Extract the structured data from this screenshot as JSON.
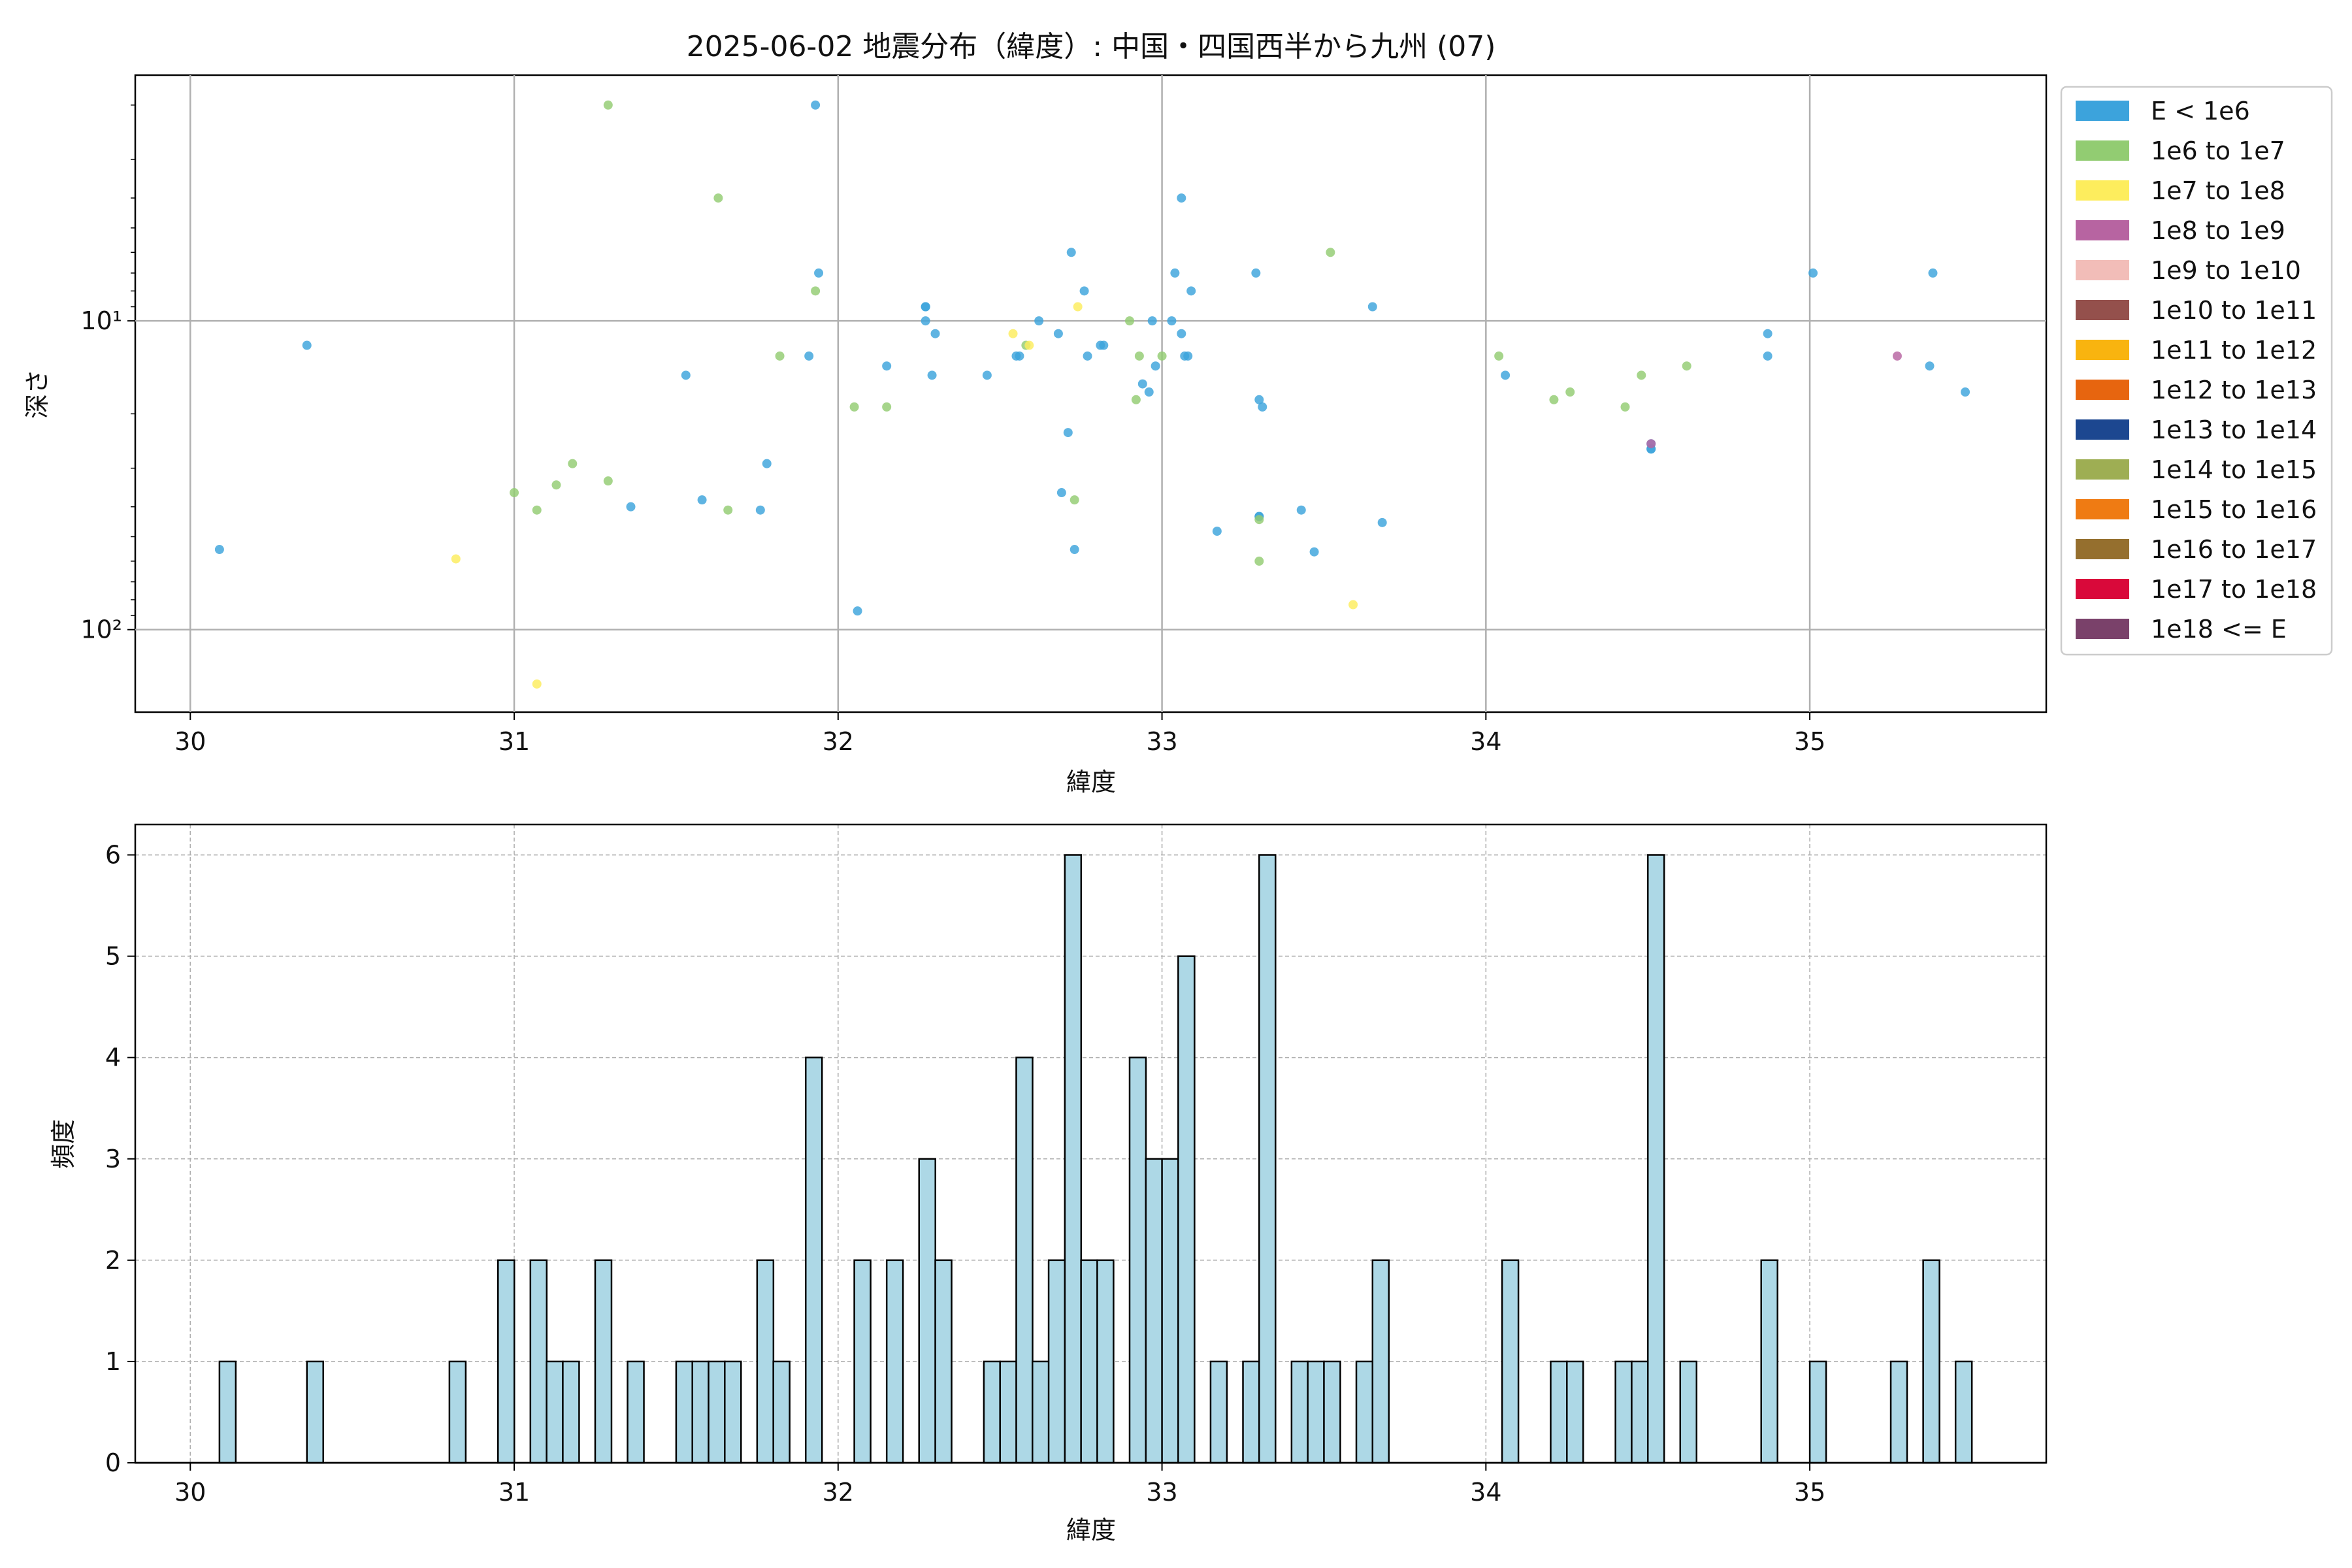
{
  "chart_data": [
    {
      "type": "scatter",
      "title": "2025-06-02 地震分布（緯度）: 中国・四国西半から九州 (07)",
      "xlabel": "緯度",
      "ylabel": "深さ",
      "yscale": "log",
      "y_inverted": true,
      "xlim": [
        29.83,
        35.73
      ],
      "ylim": [
        185,
        1.6
      ],
      "grid": true,
      "x_ticks": [
        30,
        31,
        32,
        33,
        34,
        35
      ],
      "x_tick_labels": [
        "30",
        "31",
        "32",
        "33",
        "34",
        "35"
      ],
      "y_ticks": [
        10,
        100
      ],
      "y_tick_labels": [
        "10¹",
        "10²"
      ],
      "legend_position": "right, outside axes",
      "legend": [
        {
          "label": "E < 1e6",
          "color": "#3ca3dc"
        },
        {
          "label": "1e6 to 1e7",
          "color": "#92cc72"
        },
        {
          "label": "1e7 to 1e8",
          "color": "#fded5d"
        },
        {
          "label": "1e8 to 1e9",
          "color": "#b764a1"
        },
        {
          "label": "1e9 to 1e10",
          "color": "#f2bdb8"
        },
        {
          "label": "1e10 to 1e11",
          "color": "#94504c"
        },
        {
          "label": "1e11 to 1e12",
          "color": "#f9b40f"
        },
        {
          "label": "1e12 to 1e13",
          "color": "#e7650f"
        },
        {
          "label": "1e13 to 1e14",
          "color": "#1c4790"
        },
        {
          "label": "1e14 to 1e15",
          "color": "#9eae53"
        },
        {
          "label": "1e15 to 1e16",
          "color": "#ef7b13"
        },
        {
          "label": "1e16 to 1e17",
          "color": "#956f2e"
        },
        {
          "label": "1e17 to 1e18",
          "color": "#d9093a"
        },
        {
          "label": "1e18 <= E",
          "color": "#7a416a"
        }
      ],
      "series": [
        {
          "energy_class": "E < 1e6",
          "color": "#3ca3dc",
          "points": [
            [
              30.09,
              55.0
            ],
            [
              30.36,
              12.0
            ],
            [
              31.36,
              40.0
            ],
            [
              31.53,
              15.0
            ],
            [
              31.58,
              38.0
            ],
            [
              31.76,
              41.0
            ],
            [
              31.78,
              29.0
            ],
            [
              31.91,
              13.0
            ],
            [
              31.93,
              2.0
            ],
            [
              31.94,
              7.0
            ],
            [
              32.06,
              87.0
            ],
            [
              32.15,
              14.0
            ],
            [
              32.27,
              10.0
            ],
            [
              32.27,
              9.0
            ],
            [
              32.27,
              9.0
            ],
            [
              32.29,
              15.0
            ],
            [
              32.3,
              11.0
            ],
            [
              32.46,
              15.0
            ],
            [
              32.55,
              13.0
            ],
            [
              32.56,
              13.0
            ],
            [
              32.62,
              10.0
            ],
            [
              32.68,
              11.0
            ],
            [
              32.69,
              36.0
            ],
            [
              32.71,
              23.0
            ],
            [
              32.72,
              6.0
            ],
            [
              32.73,
              55.0
            ],
            [
              32.76,
              8.0
            ],
            [
              32.77,
              13.0
            ],
            [
              32.81,
              12.0
            ],
            [
              32.82,
              12.0
            ],
            [
              32.94,
              16.0
            ],
            [
              32.96,
              17.0
            ],
            [
              32.97,
              10.0
            ],
            [
              32.98,
              14.0
            ],
            [
              33.03,
              10.0
            ],
            [
              33.04,
              7.0
            ],
            [
              33.06,
              11.0
            ],
            [
              33.06,
              4.0
            ],
            [
              33.07,
              13.0
            ],
            [
              33.08,
              13.0
            ],
            [
              33.09,
              8.0
            ],
            [
              33.17,
              48.0
            ],
            [
              33.29,
              7.0
            ],
            [
              33.3,
              18.0
            ],
            [
              33.3,
              43.0
            ],
            [
              33.3,
              43.0
            ],
            [
              33.31,
              19.0
            ],
            [
              33.43,
              41.0
            ],
            [
              33.47,
              56.0
            ],
            [
              33.65,
              9.0
            ],
            [
              33.68,
              45.0
            ],
            [
              34.06,
              15.0
            ],
            [
              34.51,
              26.0
            ],
            [
              34.51,
              26.0
            ],
            [
              34.51,
              25.0
            ],
            [
              34.87,
              11.0
            ],
            [
              34.87,
              13.0
            ],
            [
              35.01,
              7.0
            ],
            [
              35.37,
              14.0
            ],
            [
              35.38,
              7.0
            ],
            [
              35.48,
              17.0
            ]
          ]
        },
        {
          "energy_class": "1e6 to 1e7",
          "color": "#92cc72",
          "points": [
            [
              31.0,
              36.0
            ],
            [
              31.07,
              41.0
            ],
            [
              31.13,
              34.0
            ],
            [
              31.18,
              29.0
            ],
            [
              31.29,
              33.0
            ],
            [
              31.29,
              2.0
            ],
            [
              31.63,
              4.0
            ],
            [
              31.66,
              41.0
            ],
            [
              31.82,
              13.0
            ],
            [
              31.93,
              8.0
            ],
            [
              32.05,
              19.0
            ],
            [
              32.15,
              19.0
            ],
            [
              32.58,
              12.0
            ],
            [
              32.73,
              38.0
            ],
            [
              32.9,
              10.0
            ],
            [
              32.92,
              18.0
            ],
            [
              32.93,
              13.0
            ],
            [
              33.0,
              13.0
            ],
            [
              33.3,
              44.0
            ],
            [
              33.3,
              60.0
            ],
            [
              33.52,
              6.0
            ],
            [
              34.04,
              13.0
            ],
            [
              34.21,
              18.0
            ],
            [
              34.26,
              17.0
            ],
            [
              34.43,
              19.0
            ],
            [
              34.48,
              15.0
            ],
            [
              34.62,
              14.0
            ]
          ]
        },
        {
          "energy_class": "1e7 to 1e8",
          "color": "#fded5d",
          "points": [
            [
              30.82,
              59.0
            ],
            [
              31.07,
              150.0
            ],
            [
              32.54,
              11.0
            ],
            [
              32.59,
              12.0
            ],
            [
              32.74,
              9.0
            ],
            [
              33.59,
              83.0
            ]
          ]
        },
        {
          "energy_class": "1e8 to 1e9",
          "color": "#b764a1",
          "points": [
            [
              34.51,
              25.0
            ],
            [
              35.27,
              13.0
            ]
          ]
        }
      ]
    },
    {
      "type": "bar",
      "subtype": "histogram",
      "xlabel": "緯度",
      "ylabel": "頻度",
      "xlim": [
        29.83,
        35.73
      ],
      "ylim": [
        0,
        6.3
      ],
      "grid": true,
      "x_ticks": [
        30,
        31,
        32,
        33,
        34,
        35
      ],
      "x_tick_labels": [
        "30",
        "31",
        "32",
        "33",
        "34",
        "35"
      ],
      "y_ticks": [
        0,
        1,
        2,
        3,
        4,
        5,
        6
      ],
      "y_tick_labels": [
        "0",
        "1",
        "2",
        "3",
        "4",
        "5",
        "6"
      ],
      "bar_color": "#add8e6",
      "edge_color": "#000000",
      "bin_width": 0.0504,
      "bin_start": 30.09,
      "bins": [
        {
          "x": 30.09,
          "count": 1
        },
        {
          "x": 30.36,
          "count": 1
        },
        {
          "x": 30.8,
          "count": 1
        },
        {
          "x": 30.95,
          "count": 2
        },
        {
          "x": 31.05,
          "count": 2
        },
        {
          "x": 31.1,
          "count": 1
        },
        {
          "x": 31.15,
          "count": 1
        },
        {
          "x": 31.25,
          "count": 2
        },
        {
          "x": 31.35,
          "count": 1
        },
        {
          "x": 31.5,
          "count": 1
        },
        {
          "x": 31.55,
          "count": 1
        },
        {
          "x": 31.6,
          "count": 1
        },
        {
          "x": 31.65,
          "count": 1
        },
        {
          "x": 31.75,
          "count": 2
        },
        {
          "x": 31.8,
          "count": 1
        },
        {
          "x": 31.9,
          "count": 4
        },
        {
          "x": 32.05,
          "count": 2
        },
        {
          "x": 32.15,
          "count": 2
        },
        {
          "x": 32.25,
          "count": 3
        },
        {
          "x": 32.3,
          "count": 2
        },
        {
          "x": 32.45,
          "count": 1
        },
        {
          "x": 32.5,
          "count": 1
        },
        {
          "x": 32.55,
          "count": 4
        },
        {
          "x": 32.6,
          "count": 1
        },
        {
          "x": 32.65,
          "count": 2
        },
        {
          "x": 32.7,
          "count": 6
        },
        {
          "x": 32.75,
          "count": 2
        },
        {
          "x": 32.8,
          "count": 2
        },
        {
          "x": 32.9,
          "count": 4
        },
        {
          "x": 32.95,
          "count": 3
        },
        {
          "x": 33.0,
          "count": 3
        },
        {
          "x": 33.05,
          "count": 5
        },
        {
          "x": 33.15,
          "count": 1
        },
        {
          "x": 33.25,
          "count": 1
        },
        {
          "x": 33.3,
          "count": 6
        },
        {
          "x": 33.4,
          "count": 1
        },
        {
          "x": 33.45,
          "count": 1
        },
        {
          "x": 33.5,
          "count": 1
        },
        {
          "x": 33.6,
          "count": 1
        },
        {
          "x": 33.65,
          "count": 2
        },
        {
          "x": 34.05,
          "count": 2
        },
        {
          "x": 34.2,
          "count": 1
        },
        {
          "x": 34.25,
          "count": 1
        },
        {
          "x": 34.4,
          "count": 1
        },
        {
          "x": 34.45,
          "count": 1
        },
        {
          "x": 34.5,
          "count": 6
        },
        {
          "x": 34.6,
          "count": 1
        },
        {
          "x": 34.85,
          "count": 2
        },
        {
          "x": 35.0,
          "count": 1
        },
        {
          "x": 35.25,
          "count": 1
        },
        {
          "x": 35.35,
          "count": 2
        },
        {
          "x": 35.45,
          "count": 1
        }
      ]
    }
  ]
}
